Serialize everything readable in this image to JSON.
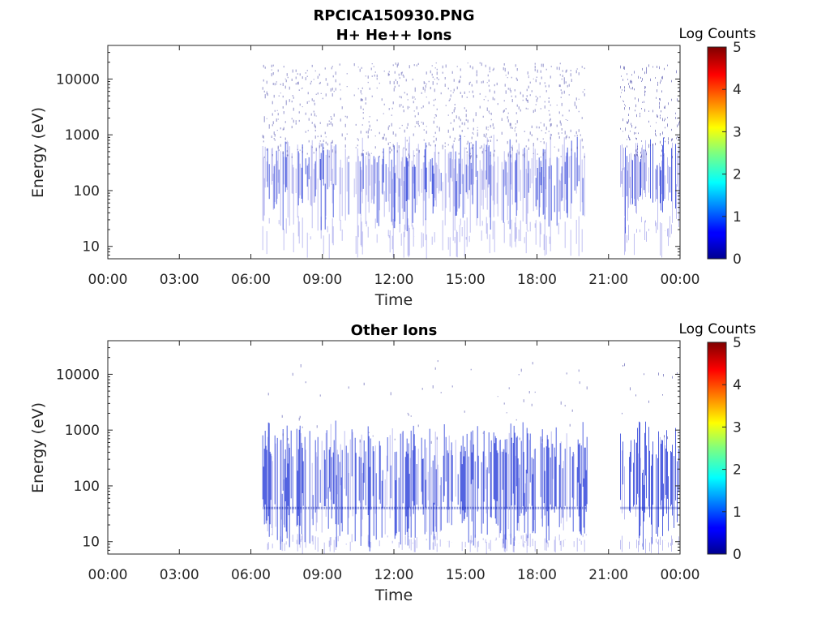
{
  "figure_title": "RPCICA150930.PNG",
  "chart_data": [
    {
      "type": "heatmap",
      "title": "H+ He++ Ions",
      "xlabel": "Time",
      "ylabel": "Energy (eV)",
      "x_ticks": [
        "00:00",
        "03:00",
        "06:00",
        "09:00",
        "12:00",
        "15:00",
        "18:00",
        "21:00",
        "00:00"
      ],
      "y_ticks": [
        "10",
        "100",
        "1000",
        "10000"
      ],
      "y_scale": "log",
      "ylim_eV": [
        6,
        40000
      ],
      "xlim_hours": [
        0,
        24
      ],
      "colorbar": {
        "title": "Log Counts",
        "ticks": [
          "0",
          "1",
          "2",
          "3",
          "4",
          "5"
        ],
        "range": [
          0,
          5
        ],
        "colormap": "jet"
      },
      "data_segments_hours": [
        [
          6.5,
          20.1
        ],
        [
          21.5,
          24.0
        ]
      ],
      "typical_log_counts": 0.3,
      "dense_band_eV": [
        50,
        400
      ]
    },
    {
      "type": "heatmap",
      "title": "Other Ions",
      "xlabel": "Time",
      "ylabel": "Energy (eV)",
      "x_ticks": [
        "00:00",
        "03:00",
        "06:00",
        "09:00",
        "12:00",
        "15:00",
        "18:00",
        "21:00",
        "00:00"
      ],
      "y_ticks": [
        "10",
        "100",
        "1000",
        "10000"
      ],
      "y_scale": "log",
      "ylim_eV": [
        6,
        40000
      ],
      "xlim_hours": [
        0,
        24
      ],
      "colorbar": {
        "title": "Log Counts",
        "ticks": [
          "0",
          "1",
          "2",
          "3",
          "4",
          "5"
        ],
        "range": [
          0,
          5
        ],
        "colormap": "jet"
      },
      "data_segments_hours": [
        [
          6.5,
          20.1
        ],
        [
          21.5,
          24.0
        ]
      ],
      "typical_log_counts": 0.8,
      "dense_band_eV": [
        20,
        600
      ],
      "line_feature_eV": 40
    }
  ]
}
